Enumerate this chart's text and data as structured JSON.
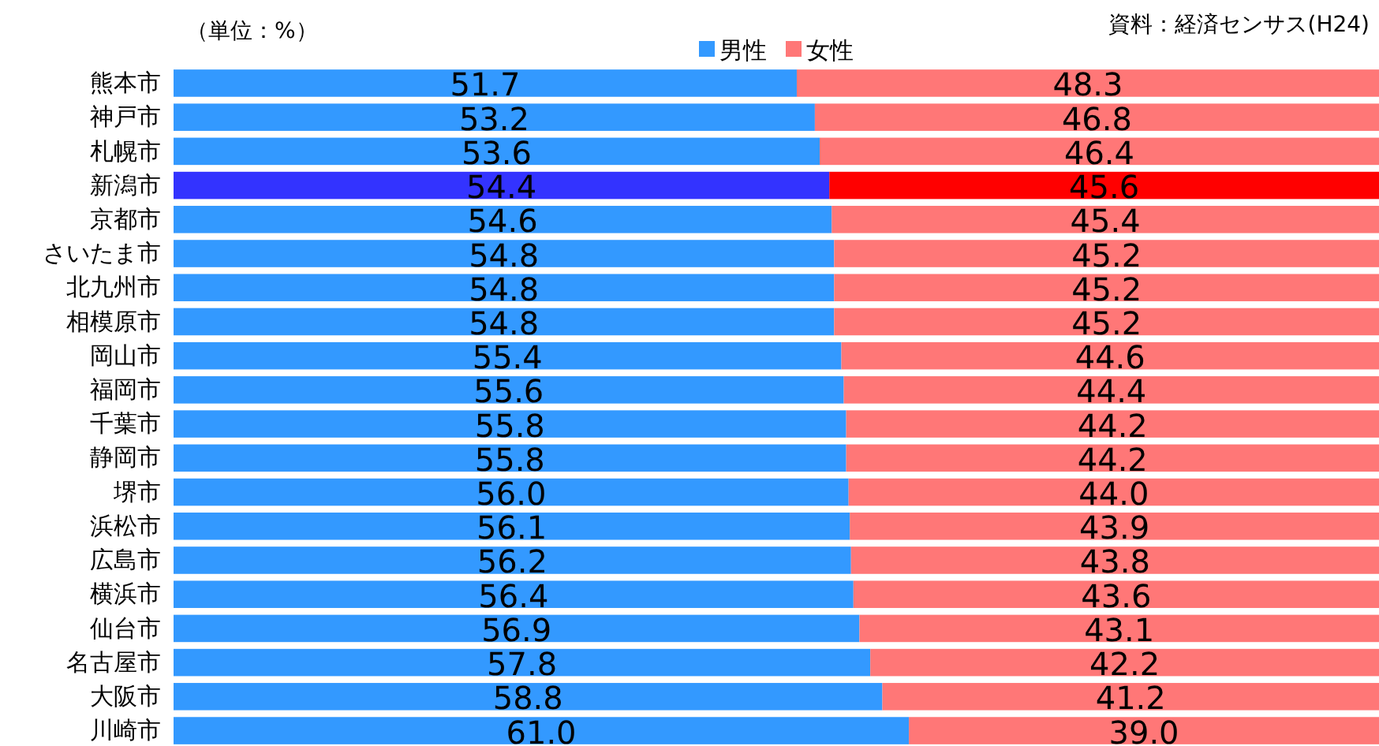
{
  "chart_data": {
    "type": "bar",
    "orientation": "horizontal",
    "stacked": true,
    "legend": "top",
    "grid": false,
    "annotations": [
      "（単位：%）",
      "資料：経済センサス(H24)"
    ],
    "categories": [
      "熊本市",
      "神戸市",
      "札幌市",
      "新潟市",
      "京都市",
      "さいたま市",
      "北九州市",
      "相模原市",
      "岡山市",
      "福岡市",
      "千葉市",
      "静岡市",
      "堺市",
      "浜松市",
      "広島市",
      "横浜市",
      "仙台市",
      "名古屋市",
      "大阪市",
      "川崎市"
    ],
    "series": [
      {
        "name": "男性",
        "color": "#3399ff",
        "colors": [
          "#3399ff",
          "#3399ff",
          "#3399ff",
          "#3333ff",
          "#3399ff",
          "#3399ff",
          "#3399ff",
          "#3399ff",
          "#3399ff",
          "#3399ff",
          "#3399ff",
          "#3399ff",
          "#3399ff",
          "#3399ff",
          "#3399ff",
          "#3399ff",
          "#3399ff",
          "#3399ff",
          "#3399ff",
          "#3399ff"
        ],
        "values": [
          51.7,
          53.2,
          53.6,
          54.4,
          54.6,
          54.8,
          54.8,
          54.8,
          55.4,
          55.6,
          55.8,
          55.8,
          56.0,
          56.1,
          56.2,
          56.4,
          56.9,
          57.8,
          58.8,
          61.0
        ],
        "value_labels": [
          "51.7",
          "53.2",
          "53.6",
          "54.4",
          "54.6",
          "54.8",
          "54.8",
          "54.8",
          "55.4",
          "55.6",
          "55.8",
          "55.8",
          "56.0",
          "56.1",
          "56.2",
          "56.4",
          "56.9",
          "57.8",
          "58.8",
          "61.0"
        ]
      },
      {
        "name": "女性",
        "color": "#ff7777",
        "colors": [
          "#ff7777",
          "#ff7777",
          "#ff7777",
          "#ff0000",
          "#ff7777",
          "#ff7777",
          "#ff7777",
          "#ff7777",
          "#ff7777",
          "#ff7777",
          "#ff7777",
          "#ff7777",
          "#ff7777",
          "#ff7777",
          "#ff7777",
          "#ff7777",
          "#ff7777",
          "#ff7777",
          "#ff7777",
          "#ff7777"
        ],
        "values": [
          48.3,
          46.8,
          46.4,
          45.6,
          45.4,
          45.2,
          45.2,
          45.2,
          44.6,
          44.4,
          44.2,
          44.2,
          44.0,
          43.9,
          43.8,
          43.6,
          43.1,
          42.2,
          41.2,
          39.0
        ],
        "value_labels": [
          "48.3",
          "46.8",
          "46.4",
          "45.6",
          "45.4",
          "45.2",
          "45.2",
          "45.2",
          "44.6",
          "44.4",
          "44.2",
          "44.2",
          "44.0",
          "43.9",
          "43.8",
          "43.6",
          "43.1",
          "42.2",
          "41.2",
          "39.0"
        ]
      }
    ]
  }
}
